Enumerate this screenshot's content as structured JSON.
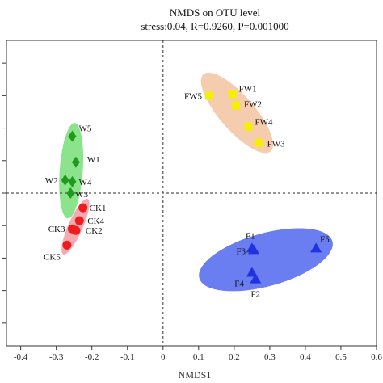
{
  "chart_data": {
    "type": "scatter",
    "title": "NMDS on OTU level",
    "subtitle": "stress:0.04, R=0.9260, P=0.001000",
    "xlabel": "NMDS1",
    "ylabel": "",
    "xlim": [
      -0.44,
      0.6
    ],
    "ylim": [
      -0.47,
      0.47
    ],
    "x_ticks": [
      "-0.4",
      "-0.3",
      "-0.2",
      "-0.1",
      "0",
      "0.1",
      "0.2",
      "0.3",
      "0.4",
      "0.5",
      "0.6"
    ],
    "x_tick_values": [
      -0.4,
      -0.3,
      -0.2,
      -0.1,
      0,
      0.1,
      0.2,
      0.3,
      0.4,
      0.5,
      0.6
    ],
    "y_tick_values": [
      -0.4,
      -0.3,
      -0.2,
      -0.1,
      0,
      0.1,
      0.2,
      0.3,
      0.4
    ],
    "grid": false,
    "reference_lines": {
      "x": 0,
      "y": 0,
      "style": "dashed"
    },
    "series": [
      {
        "marker": "square",
        "color": "#f5f000",
        "ellipse_color": "#f4c7a4",
        "points": [
          {
            "label": "FW5",
            "x": 0.13,
            "y": 0.3
          },
          {
            "label": "FW1",
            "x": 0.195,
            "y": 0.305
          },
          {
            "label": "FW2",
            "x": 0.205,
            "y": 0.27
          },
          {
            "label": "FW4",
            "x": 0.24,
            "y": 0.205
          },
          {
            "label": "FW3",
            "x": 0.27,
            "y": 0.155
          }
        ]
      },
      {
        "marker": "diamond",
        "color": "#1f9a1f",
        "ellipse_color": "#7ee07e",
        "points": [
          {
            "label": "W5",
            "x": -0.255,
            "y": 0.175
          },
          {
            "label": "W1",
            "x": -0.245,
            "y": 0.095
          },
          {
            "label": "W2",
            "x": -0.275,
            "y": 0.04
          },
          {
            "label": "W4",
            "x": -0.255,
            "y": 0.035
          },
          {
            "label": "W3",
            "x": -0.26,
            "y": 0.0
          }
        ]
      },
      {
        "marker": "circle",
        "color": "#ee1c1c",
        "ellipse_color": "#f4a0a8",
        "points": [
          {
            "label": "CK1",
            "x": -0.225,
            "y": -0.045
          },
          {
            "label": "CK4",
            "x": -0.235,
            "y": -0.085
          },
          {
            "label": "CK3",
            "x": -0.255,
            "y": -0.11
          },
          {
            "label": "CK2",
            "x": -0.245,
            "y": -0.115
          },
          {
            "label": "CK5",
            "x": -0.27,
            "y": -0.16
          }
        ]
      },
      {
        "marker": "triangle",
        "color": "#2233dd",
        "ellipse_color": "#5a6ff0",
        "points": [
          {
            "label": "F1",
            "x": 0.25,
            "y": -0.17
          },
          {
            "label": "F3",
            "x": 0.255,
            "y": -0.175
          },
          {
            "label": "F5",
            "x": 0.43,
            "y": -0.17
          },
          {
            "label": "F4",
            "x": 0.25,
            "y": -0.245
          },
          {
            "label": "F2",
            "x": 0.26,
            "y": -0.265
          }
        ]
      }
    ]
  }
}
